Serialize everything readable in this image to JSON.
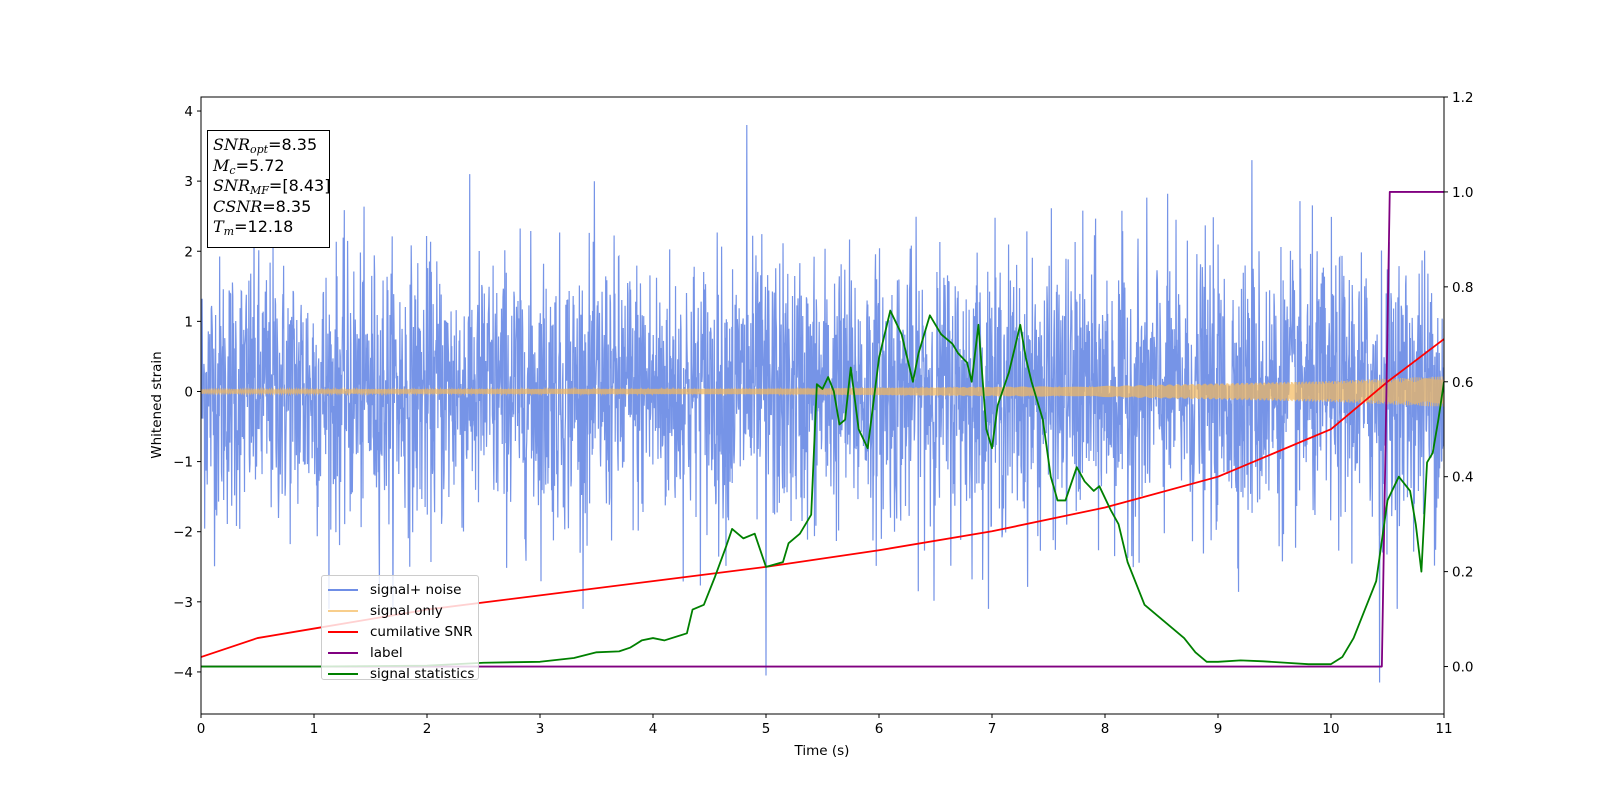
{
  "chart_data": {
    "type": "line",
    "title": "",
    "xlabel": "Time (s)",
    "ylabel": "Whitened strain",
    "xlim": [
      0,
      11
    ],
    "ylim": [
      -4.6,
      4.2
    ],
    "y2lim": [
      -0.1,
      1.2
    ],
    "x_ticks": [
      "0",
      "1",
      "2",
      "3",
      "4",
      "5",
      "6",
      "7",
      "8",
      "9",
      "10",
      "11"
    ],
    "y_ticks": [
      "−4",
      "−3",
      "−2",
      "−1",
      "0",
      "1",
      "2",
      "3",
      "4"
    ],
    "y2_ticks": [
      "0.0",
      "0.2",
      "0.4",
      "0.6",
      "0.8",
      "1.0",
      "1.2"
    ],
    "grid": false,
    "legend_position": "lower-left",
    "series": [
      {
        "name": "signal+ noise",
        "color": "#6f8ee6",
        "axis": "left",
        "description_values": {
          "typical_range": [
            -2.0,
            2.0
          ],
          "peaks": [
            {
              "x": 4.83,
              "y": 3.8
            },
            {
              "x": 5.0,
              "y": -4.05
            },
            {
              "x": 9.3,
              "y": 3.3
            },
            {
              "x": 10.43,
              "y": -4.15
            }
          ]
        }
      },
      {
        "name": "signal only",
        "color": "#f5b95b",
        "axis": "left",
        "envelope": {
          "x": [
            0,
            5,
            8,
            10,
            11
          ],
          "amplitude": [
            0.03,
            0.04,
            0.08,
            0.15,
            0.22
          ]
        }
      },
      {
        "name": "cumilative SNR",
        "color": "#ff0000",
        "axis": "right",
        "x": [
          0,
          0.5,
          1,
          2,
          3,
          4,
          5,
          6,
          7,
          8,
          9,
          10,
          10.5,
          11
        ],
        "values": [
          0.02,
          0.06,
          0.08,
          0.12,
          0.15,
          0.18,
          0.21,
          0.245,
          0.285,
          0.335,
          0.4,
          0.5,
          0.6,
          0.69
        ]
      },
      {
        "name": "label",
        "color": "#800080",
        "axis": "right",
        "x": [
          0,
          10.45,
          10.52,
          11
        ],
        "values": [
          0,
          0,
          1,
          1
        ]
      },
      {
        "name": "signal statistics",
        "color": "#008000",
        "axis": "right",
        "x": [
          0,
          1,
          2,
          2.5,
          3,
          3.3,
          3.5,
          3.7,
          3.8,
          3.9,
          4.0,
          4.1,
          4.3,
          4.35,
          4.45,
          4.55,
          4.65,
          4.7,
          4.8,
          4.9,
          5.0,
          5.15,
          5.2,
          5.3,
          5.4,
          5.45,
          5.5,
          5.55,
          5.6,
          5.65,
          5.7,
          5.75,
          5.82,
          5.9,
          6.0,
          6.1,
          6.2,
          6.3,
          6.35,
          6.45,
          6.55,
          6.65,
          6.7,
          6.78,
          6.82,
          6.88,
          6.95,
          7.0,
          7.05,
          7.15,
          7.25,
          7.3,
          7.35,
          7.45,
          7.52,
          7.58,
          7.65,
          7.75,
          7.82,
          7.9,
          7.95,
          8.05,
          8.12,
          8.2,
          8.35,
          8.5,
          8.6,
          8.7,
          8.8,
          8.9,
          9.0,
          9.2,
          9.4,
          9.6,
          9.8,
          10.0,
          10.1,
          10.2,
          10.3,
          10.4,
          10.5,
          10.6,
          10.7,
          10.75,
          10.8,
          10.85,
          10.9,
          10.95,
          11.0
        ],
        "values": [
          0,
          0,
          0.002,
          0.008,
          0.01,
          0.018,
          0.03,
          0.032,
          0.04,
          0.055,
          0.06,
          0.055,
          0.07,
          0.12,
          0.13,
          0.19,
          0.255,
          0.29,
          0.27,
          0.28,
          0.21,
          0.22,
          0.26,
          0.28,
          0.32,
          0.595,
          0.585,
          0.61,
          0.58,
          0.51,
          0.52,
          0.63,
          0.5,
          0.46,
          0.65,
          0.75,
          0.7,
          0.6,
          0.66,
          0.74,
          0.7,
          0.68,
          0.66,
          0.64,
          0.6,
          0.72,
          0.5,
          0.46,
          0.55,
          0.62,
          0.72,
          0.65,
          0.6,
          0.52,
          0.4,
          0.35,
          0.35,
          0.42,
          0.39,
          0.37,
          0.38,
          0.33,
          0.3,
          0.22,
          0.13,
          0.1,
          0.08,
          0.06,
          0.03,
          0.01,
          0.01,
          0.013,
          0.011,
          0.008,
          0.005,
          0.005,
          0.02,
          0.06,
          0.12,
          0.18,
          0.35,
          0.4,
          0.37,
          0.3,
          0.2,
          0.43,
          0.45,
          0.52,
          0.6
        ]
      }
    ]
  },
  "info_box": {
    "snr_opt": "=8.35",
    "mc": "=5.72",
    "snr_mf": "=[8.43]",
    "csnr": "=8.35",
    "tm": "=12.18"
  }
}
